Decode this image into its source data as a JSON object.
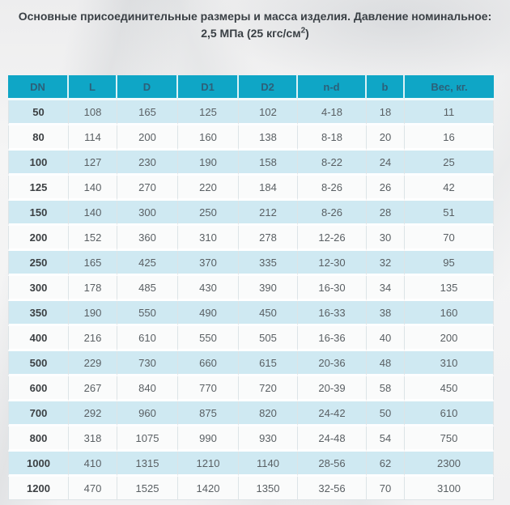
{
  "title": {
    "line1": "Основные присоединительные размеры и масса изделия. Давление номинальное:",
    "line2_prefix": "2,5 МПа (25 кгс/см",
    "line2_sup": "2",
    "line2_suffix": ")"
  },
  "table": {
    "columns": [
      "DN",
      "L",
      "D",
      "D1",
      "D2",
      "n-d",
      "b",
      "Вес, кг."
    ],
    "rows": [
      [
        "50",
        "108",
        "165",
        "125",
        "102",
        "4-18",
        "18",
        "11"
      ],
      [
        "80",
        "114",
        "200",
        "160",
        "138",
        "8-18",
        "20",
        "16"
      ],
      [
        "100",
        "127",
        "230",
        "190",
        "158",
        "8-22",
        "24",
        "25"
      ],
      [
        "125",
        "140",
        "270",
        "220",
        "184",
        "8-26",
        "26",
        "42"
      ],
      [
        "150",
        "140",
        "300",
        "250",
        "212",
        "8-26",
        "28",
        "51"
      ],
      [
        "200",
        "152",
        "360",
        "310",
        "278",
        "12-26",
        "30",
        "70"
      ],
      [
        "250",
        "165",
        "425",
        "370",
        "335",
        "12-30",
        "32",
        "95"
      ],
      [
        "300",
        "178",
        "485",
        "430",
        "390",
        "16-30",
        "34",
        "135"
      ],
      [
        "350",
        "190",
        "550",
        "490",
        "450",
        "16-33",
        "38",
        "160"
      ],
      [
        "400",
        "216",
        "610",
        "550",
        "505",
        "16-36",
        "40",
        "200"
      ],
      [
        "500",
        "229",
        "730",
        "660",
        "615",
        "20-36",
        "48",
        "310"
      ],
      [
        "600",
        "267",
        "840",
        "770",
        "720",
        "20-39",
        "58",
        "450"
      ],
      [
        "700",
        "292",
        "960",
        "875",
        "820",
        "24-42",
        "50",
        "610"
      ],
      [
        "800",
        "318",
        "1075",
        "990",
        "930",
        "24-48",
        "54",
        "750"
      ],
      [
        "1000",
        "410",
        "1315",
        "1210",
        "1140",
        "28-56",
        "62",
        "2300"
      ],
      [
        "1200",
        "470",
        "1525",
        "1420",
        "1350",
        "32-56",
        "70",
        "3100"
      ]
    ]
  },
  "colors": {
    "header_bg": "#0fa6c6",
    "header_text": "#2c6079",
    "row_alt_bg": "#cfe9f2",
    "row_bg": "#fafbfb",
    "cell_text": "#595f63",
    "dn_text": "#3c4043",
    "title_text": "#3a4045",
    "grid_line": "#dde4e7"
  }
}
